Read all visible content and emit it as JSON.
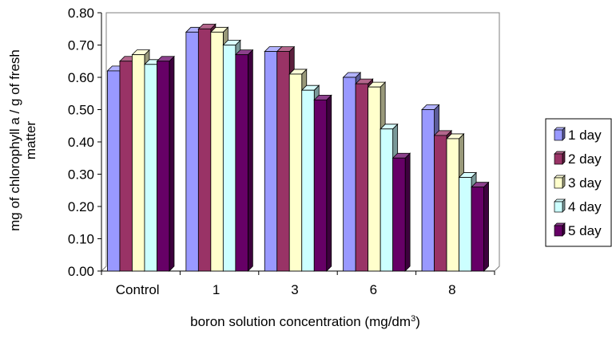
{
  "chart_data": {
    "type": "bar",
    "categories": [
      "Control",
      "1",
      "3",
      "6",
      "8"
    ],
    "series": [
      {
        "name": "1 day",
        "color": "#9999ff",
        "values": [
          0.62,
          0.74,
          0.68,
          0.6,
          0.5
        ]
      },
      {
        "name": "2 day",
        "color": "#993366",
        "values": [
          0.65,
          0.75,
          0.68,
          0.58,
          0.42
        ]
      },
      {
        "name": "3 day",
        "color": "#ffffcc",
        "values": [
          0.67,
          0.74,
          0.61,
          0.57,
          0.41
        ]
      },
      {
        "name": "4 day",
        "color": "#ccffff",
        "values": [
          0.64,
          0.7,
          0.56,
          0.44,
          0.29
        ]
      },
      {
        "name": "5 day",
        "color": "#660066",
        "values": [
          0.65,
          0.67,
          0.53,
          0.35,
          0.26
        ]
      }
    ],
    "y_ticks": [
      "0.00",
      "0.10",
      "0.20",
      "0.30",
      "0.40",
      "0.50",
      "0.60",
      "0.70",
      "0.80"
    ],
    "ylim": [
      0,
      0.8
    ],
    "ylabel_line1": "mg of chlorophyll a / g of fresh",
    "ylabel_line2": "matter",
    "xlabel_main": "boron solution concentration (mg/dm",
    "xlabel_sup": "3",
    "xlabel_end": ")",
    "legend_position": "right",
    "grid": false,
    "style": "3d-clustered-bar"
  }
}
